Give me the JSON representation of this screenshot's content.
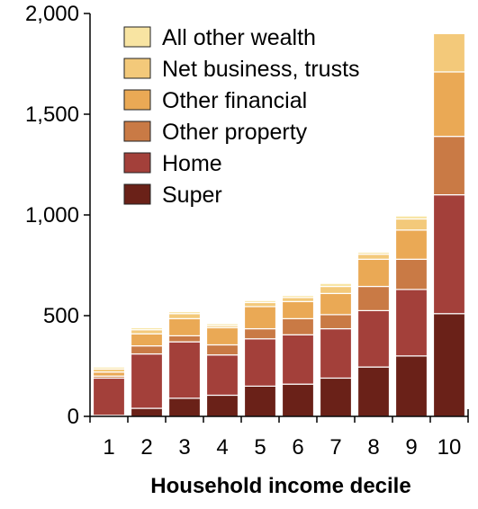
{
  "chart_data": {
    "type": "bar",
    "stacked": true,
    "title": "",
    "xlabel": "Household income decile",
    "ylabel": "",
    "categories": [
      "1",
      "2",
      "3",
      "4",
      "5",
      "6",
      "7",
      "8",
      "9",
      "10"
    ],
    "y_ticks": [
      "0",
      "500",
      "1,000",
      "1,500",
      "2,000"
    ],
    "y_tick_values": [
      0,
      500,
      1000,
      1500,
      2000
    ],
    "ylim": [
      0,
      2000
    ],
    "grid": false,
    "legend_position": "top-left",
    "series": [
      {
        "name": "Super",
        "color": "#6a2118",
        "values": [
          5,
          40,
          90,
          105,
          150,
          160,
          190,
          245,
          300,
          510
        ]
      },
      {
        "name": "Home",
        "color": "#a3403a",
        "values": [
          185,
          270,
          280,
          200,
          235,
          245,
          245,
          280,
          330,
          590
        ]
      },
      {
        "name": "Other property",
        "color": "#c97a45",
        "values": [
          10,
          40,
          30,
          50,
          50,
          80,
          70,
          120,
          150,
          290
        ]
      },
      {
        "name": "Other financial",
        "color": "#eaa955",
        "values": [
          20,
          60,
          85,
          85,
          110,
          85,
          105,
          135,
          145,
          320
        ]
      },
      {
        "name": "Net business, trusts",
        "color": "#f3c97a",
        "values": [
          15,
          20,
          25,
          10,
          20,
          20,
          35,
          25,
          55,
          190
        ]
      },
      {
        "name": "All other wealth",
        "color": "#f8e4a2",
        "values": [
          10,
          10,
          10,
          10,
          10,
          10,
          15,
          10,
          15,
          0
        ]
      }
    ]
  }
}
